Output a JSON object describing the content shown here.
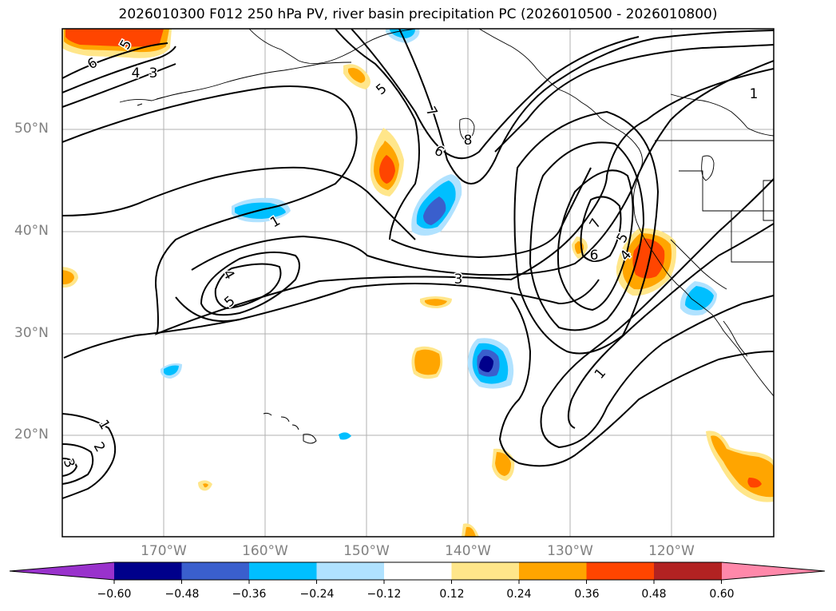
{
  "title": "2026010300 F012 250 hPa PV, river basin precipitation PC (2026010500 - 2026010800)",
  "lat_labels": [
    "50°N",
    "40°N",
    "30°N",
    "20°N"
  ],
  "lon_labels": [
    "170°W",
    "160°W",
    "150°W",
    "140°W",
    "130°W",
    "120°W"
  ],
  "colorbar": {
    "ticks": [
      "−0.60",
      "−0.48",
      "−0.36",
      "−0.24",
      "−0.12",
      "0.12",
      "0.24",
      "0.36",
      "0.48",
      "0.60"
    ],
    "colors": [
      "#9932CC",
      "#00008B",
      "#3A5FCD",
      "#00BFFF",
      "#B0E2FF",
      "#FFFFFF",
      "#FFE68A",
      "#FFA500",
      "#FF4500",
      "#B22222",
      "#FF88AA"
    ]
  },
  "contour_labels": [
    "5",
    "6",
    "4",
    "3",
    "5",
    "7",
    "6",
    "8",
    "1",
    "1",
    "4",
    "5",
    "3",
    "7",
    "6",
    "5",
    "4",
    "1",
    "1",
    "2",
    "3"
  ]
}
